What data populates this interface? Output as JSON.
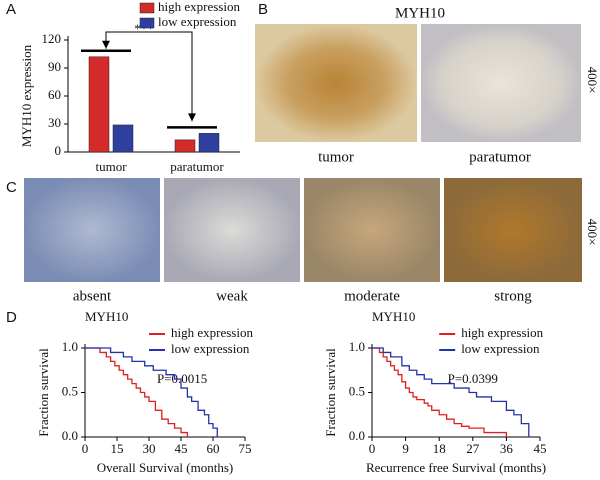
{
  "chart_data": [
    {
      "type": "bar",
      "ylabel": "MYH10 expression",
      "annotation": "***",
      "categories": [
        "tumor",
        "paratumor"
      ],
      "series": [
        {
          "name": "high expression",
          "color": "#d42a2a",
          "values": [
            102,
            13
          ]
        },
        {
          "name": "low expression",
          "color": "#2e3f9e",
          "values": [
            29,
            20
          ]
        }
      ],
      "ylim": [
        0,
        120
      ],
      "yticks": [
        0,
        30,
        60,
        90,
        120
      ]
    },
    {
      "type": "line",
      "step": true,
      "title": "MYH10",
      "annotation": "P=0.0015",
      "xlabel": "Overall Survival (months)",
      "ylabel": "Fraction survival",
      "series": [
        {
          "name": "high expression",
          "color": "#e02020",
          "x": [
            0,
            7,
            10,
            12,
            14,
            16,
            18,
            20,
            22,
            24,
            26,
            28,
            30,
            33,
            36,
            39,
            42,
            45,
            48
          ],
          "values": [
            1,
            0.95,
            0.9,
            0.85,
            0.8,
            0.75,
            0.7,
            0.65,
            0.6,
            0.55,
            0.5,
            0.45,
            0.4,
            0.3,
            0.2,
            0.15,
            0.1,
            0.05,
            0
          ]
        },
        {
          "name": "low expression",
          "color": "#2233aa",
          "x": [
            0,
            12,
            18,
            22,
            28,
            32,
            38,
            42,
            45,
            48,
            50,
            53,
            56,
            58,
            60,
            62
          ],
          "values": [
            1,
            0.95,
            0.9,
            0.85,
            0.8,
            0.75,
            0.7,
            0.65,
            0.55,
            0.45,
            0.4,
            0.3,
            0.25,
            0.15,
            0.1,
            0
          ]
        }
      ],
      "xlim": [
        0,
        75
      ],
      "xticks": [
        0,
        15,
        30,
        45,
        60,
        75
      ],
      "ylim": [
        0,
        1
      ],
      "yticks": [
        {
          "value": 0,
          "label": "0.0"
        },
        0.5,
        {
          "value": 1,
          "label": "1.0"
        }
      ]
    },
    {
      "type": "line",
      "step": true,
      "title": "MYH10",
      "annotation": "P=0.0399",
      "xlabel": "Recurrence free Survival (months)",
      "ylabel": "Fraction survival",
      "series": [
        {
          "name": "high expression",
          "color": "#e02020",
          "x": [
            0,
            2,
            3,
            4,
            5,
            6,
            7,
            8,
            9,
            10,
            11,
            12,
            14,
            15,
            16,
            18,
            20,
            22,
            24,
            26,
            30,
            36
          ],
          "values": [
            1,
            0.95,
            0.9,
            0.85,
            0.8,
            0.75,
            0.7,
            0.62,
            0.55,
            0.5,
            0.45,
            0.42,
            0.38,
            0.35,
            0.3,
            0.25,
            0.2,
            0.15,
            0.12,
            0.1,
            0.05,
            0
          ]
        },
        {
          "name": "low expression",
          "color": "#2233aa",
          "x": [
            0,
            3,
            5,
            8,
            10,
            12,
            14,
            16,
            22,
            26,
            28,
            32,
            36,
            38,
            40,
            42
          ],
          "values": [
            1,
            0.95,
            0.9,
            0.8,
            0.75,
            0.7,
            0.65,
            0.6,
            0.55,
            0.5,
            0.45,
            0.4,
            0.3,
            0.25,
            0.15,
            0
          ]
        }
      ],
      "xlim": [
        0,
        45
      ],
      "xticks": [
        0,
        9,
        18,
        27,
        36,
        45
      ],
      "ylim": [
        0,
        1
      ],
      "yticks": [
        {
          "value": 0,
          "label": "0.0"
        },
        0.5,
        {
          "value": 1,
          "label": "1.0"
        }
      ]
    }
  ],
  "panels": {
    "a": "A",
    "b": "B",
    "c": "C",
    "d": "D"
  },
  "images_b": {
    "title": "MYH10",
    "magnification": "400×",
    "labels": [
      "tumor",
      "paratumor"
    ]
  },
  "images_c": {
    "magnification": "400×",
    "labels": [
      "absent",
      "weak",
      "moderate",
      "strong"
    ]
  }
}
